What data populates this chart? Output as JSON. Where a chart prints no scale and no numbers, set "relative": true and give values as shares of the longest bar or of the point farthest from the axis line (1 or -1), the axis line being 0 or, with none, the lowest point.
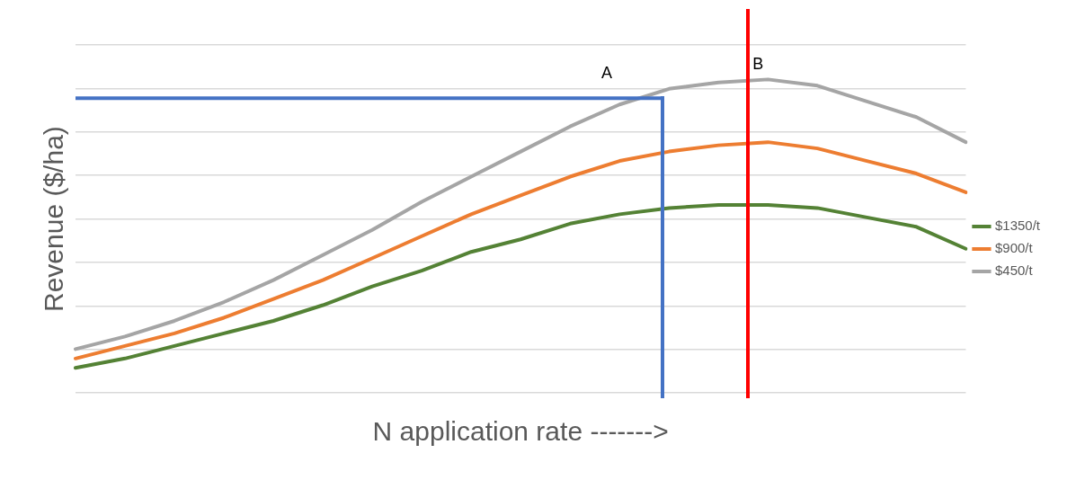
{
  "chart_data": {
    "type": "line",
    "relative": true,
    "xlabel": "N application rate ------->",
    "ylabel": "Revenue ($/ha)",
    "categories": [
      null,
      null,
      null,
      null,
      null,
      null,
      null,
      null,
      null,
      null,
      null,
      null,
      null,
      null,
      null,
      null,
      null,
      null,
      null
    ],
    "grid": "y",
    "legend": "right",
    "line_style": "solid",
    "series": [
      {
        "name": "$1350/t",
        "color": "#548235",
        "values": [
          0.08,
          0.11,
          0.15,
          0.19,
          0.23,
          0.28,
          0.34,
          0.39,
          0.45,
          0.49,
          0.54,
          0.57,
          0.59,
          0.6,
          0.6,
          0.59,
          0.56,
          0.53,
          0.46
        ]
      },
      {
        "name": "$900/t",
        "color": "#ed7d31",
        "values": [
          0.11,
          0.15,
          0.19,
          0.24,
          0.3,
          0.36,
          0.43,
          0.5,
          0.57,
          0.63,
          0.69,
          0.74,
          0.77,
          0.79,
          0.8,
          0.78,
          0.74,
          0.7,
          0.64
        ]
      },
      {
        "name": "$450/t",
        "color": "#a5a5a5",
        "values": [
          0.14,
          0.18,
          0.23,
          0.29,
          0.36,
          0.44,
          0.52,
          0.61,
          0.69,
          0.77,
          0.85,
          0.92,
          0.97,
          0.99,
          1.0,
          0.98,
          0.93,
          0.88,
          0.8
        ]
      }
    ],
    "ref_lines": [
      {
        "axis": "y",
        "value": 0.94,
        "color": "#4472c4"
      }
    ],
    "annotations": [
      "A",
      "B"
    ]
  }
}
